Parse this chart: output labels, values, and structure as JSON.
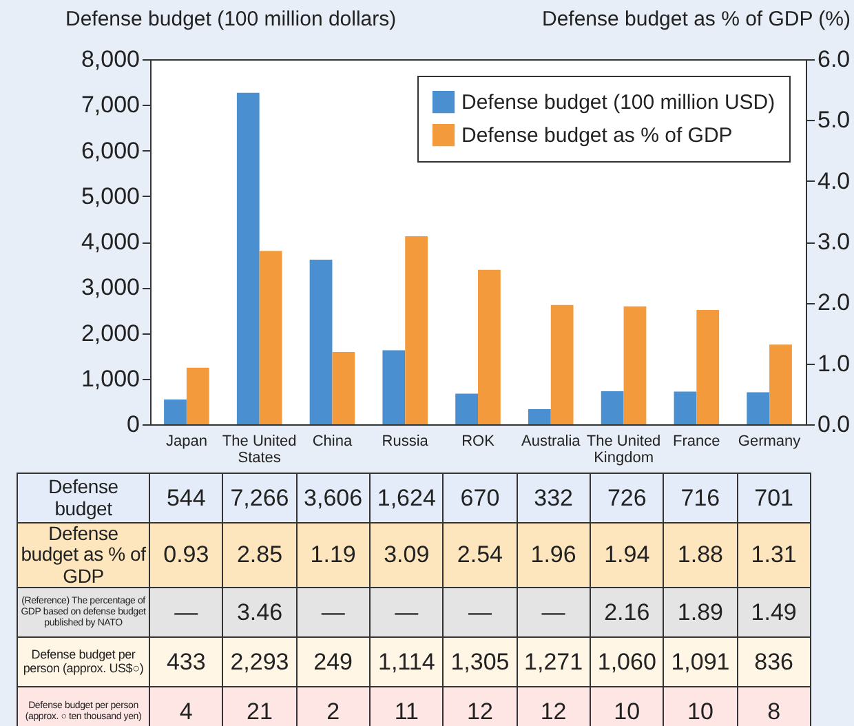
{
  "chart_data": {
    "type": "bar",
    "ylabel": "Defense budget (100 million dollars)",
    "y2label": "Defense budget as % of GDP (%)",
    "categories": [
      "Japan",
      "The United States",
      "China",
      "Russia",
      "ROK",
      "Australia",
      "The United Kingdom",
      "France",
      "Germany"
    ],
    "series": [
      {
        "name": "Defense budget (100 million USD)",
        "color": "#4a8fd0",
        "values": [
          544,
          7266,
          3606,
          1624,
          670,
          332,
          726,
          716,
          701
        ],
        "value_labels": [
          "544",
          "7,266",
          "3,606",
          "1,624",
          "670",
          "332",
          "726",
          "716",
          "701"
        ]
      },
      {
        "name": "Defense budget as % of GDP",
        "color": "#f39a3c",
        "axis": "y2",
        "values": [
          0.93,
          2.85,
          1.19,
          3.09,
          2.54,
          1.96,
          1.94,
          1.88,
          1.31
        ],
        "value_labels": [
          "0.93",
          "2.85",
          "1.19",
          "3.09",
          "2.54",
          "1.96",
          "1.94",
          "1.88",
          "1.31"
        ]
      }
    ],
    "ylim": [
      0,
      8000
    ],
    "yticks": [
      0,
      {
        "value": 1000,
        "label": "1,000"
      },
      {
        "value": 2000,
        "label": "2,000"
      },
      {
        "value": 3000,
        "label": "3,000"
      },
      {
        "value": 4000,
        "label": "4,000"
      },
      {
        "value": 5000,
        "label": "5,000"
      },
      {
        "value": 6000,
        "label": "6,000"
      },
      {
        "value": 7000,
        "label": "7,000"
      },
      {
        "value": 8000,
        "label": "8,000"
      }
    ],
    "y2lim": [
      0,
      6
    ],
    "y2ticks": [
      {
        "value": 0,
        "label": "0.0"
      },
      {
        "value": 1,
        "label": "1.0"
      },
      {
        "value": 2,
        "label": "2.0"
      },
      {
        "value": 3,
        "label": "3.0"
      },
      {
        "value": 4,
        "label": "4.0"
      },
      {
        "value": 5,
        "label": "5.0"
      },
      {
        "value": 6,
        "label": "6.0"
      }
    ],
    "legend": "top right",
    "grid": false,
    "annotations": [
      "Defense budget",
      "Defense budget as % of GDP",
      "(Reference) The percentage of GDP based on defense budget published by NATO",
      "—",
      "3.46",
      "—",
      "—",
      "—",
      "—",
      "2.16",
      "1.89",
      "1.49",
      "Defense budget per person (approx. US$○)",
      "433",
      "2,293",
      "249",
      "1,114",
      "1,305",
      "1,271",
      "1,060",
      "1,091",
      "836",
      "Defense budget per person (approx. ○ ten thousand yen)",
      "4",
      "21",
      "2",
      "11",
      "12",
      "12",
      "10",
      "10",
      "8"
    ]
  }
}
